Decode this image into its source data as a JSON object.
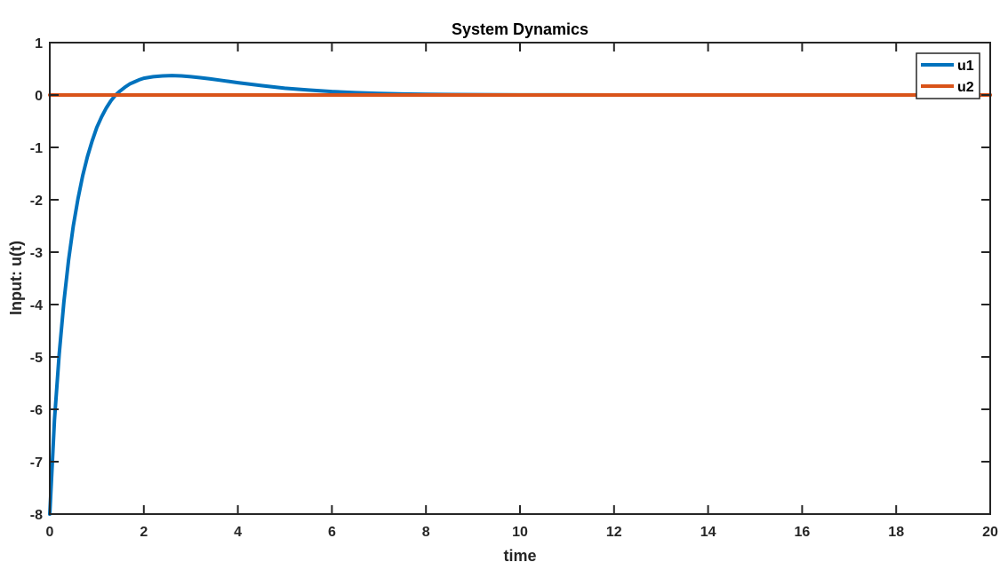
{
  "chart_data": {
    "type": "line",
    "title": "System Dynamics",
    "xlabel": "time",
    "ylabel": "Input: u(t)",
    "xlim": [
      0,
      20
    ],
    "ylim": [
      -8,
      1
    ],
    "xticks": [
      0,
      2,
      4,
      6,
      8,
      10,
      12,
      14,
      16,
      18,
      20
    ],
    "yticks": [
      -8,
      -7,
      -6,
      -5,
      -4,
      -3,
      -2,
      -1,
      0,
      1
    ],
    "grid": false,
    "box": true,
    "legend": {
      "placement": "top-right"
    },
    "series": [
      {
        "name": "u1",
        "color": "#0072BD",
        "x": [
          0,
          0.1,
          0.2,
          0.3,
          0.4,
          0.5,
          0.6,
          0.7,
          0.8,
          0.9,
          1.0,
          1.1,
          1.2,
          1.3,
          1.4,
          1.5,
          1.6,
          1.7,
          1.8,
          1.9,
          2.0,
          2.2,
          2.4,
          2.6,
          2.8,
          3.0,
          3.2,
          3.4,
          3.6,
          3.8,
          4.0,
          4.5,
          5.0,
          5.5,
          6.0,
          6.5,
          7.0,
          7.5,
          8.0,
          9.0,
          10.0,
          12.0,
          14.0,
          16.0,
          18.0,
          20.0
        ],
        "y": [
          -8.0,
          -6.2,
          -4.95,
          -3.95,
          -3.15,
          -2.5,
          -1.98,
          -1.54,
          -1.18,
          -0.88,
          -0.62,
          -0.42,
          -0.25,
          -0.11,
          0.0,
          0.08,
          0.15,
          0.21,
          0.25,
          0.29,
          0.32,
          0.35,
          0.365,
          0.37,
          0.365,
          0.35,
          0.33,
          0.31,
          0.285,
          0.26,
          0.235,
          0.18,
          0.13,
          0.095,
          0.065,
          0.045,
          0.03,
          0.02,
          0.013,
          0.006,
          0.002,
          0.0005,
          0.0001,
          0.0,
          0.0,
          0.0
        ]
      },
      {
        "name": "u2",
        "color": "#D95319",
        "x": [
          0,
          20
        ],
        "y": [
          0,
          0
        ]
      }
    ]
  }
}
